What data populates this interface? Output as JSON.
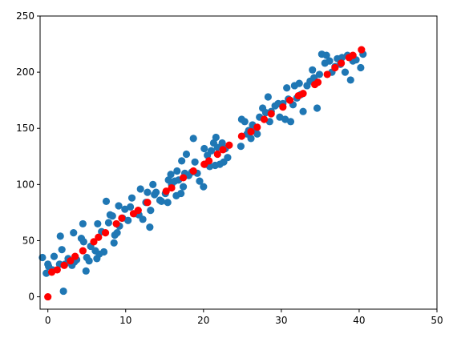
{
  "chart_data": {
    "type": "scatter",
    "xlim": [
      -1,
      50
    ],
    "ylim": [
      -11,
      250
    ],
    "x_ticks": [
      0,
      10,
      20,
      30,
      40,
      50
    ],
    "y_ticks": [
      0,
      50,
      100,
      150,
      200,
      250
    ],
    "x_tick_labels": [
      "0",
      "10",
      "20",
      "30",
      "40",
      "50"
    ],
    "y_tick_labels": [
      "0",
      "50",
      "100",
      "150",
      "200",
      "250"
    ],
    "grid": false,
    "series": [
      {
        "color": "#1f77b4",
        "points": [
          [
            -0.7,
            35
          ],
          [
            0,
            29
          ],
          [
            0.1,
            27
          ],
          [
            -0.2,
            21
          ],
          [
            0.6,
            24
          ],
          [
            0.8,
            36
          ],
          [
            1.5,
            29
          ],
          [
            1.6,
            54
          ],
          [
            1.8,
            42
          ],
          [
            2,
            5
          ],
          [
            2.2,
            29
          ],
          [
            2.6,
            34
          ],
          [
            2.9,
            31
          ],
          [
            3.1,
            28
          ],
          [
            3.3,
            57
          ],
          [
            3.4,
            31
          ],
          [
            3.7,
            33
          ],
          [
            4.3,
            52
          ],
          [
            4.5,
            65
          ],
          [
            4.6,
            49
          ],
          [
            4.9,
            23
          ],
          [
            5,
            35
          ],
          [
            5.3,
            32
          ],
          [
            5.5,
            45
          ],
          [
            6.1,
            41
          ],
          [
            6.3,
            34
          ],
          [
            6.4,
            65
          ],
          [
            6.6,
            38
          ],
          [
            6.9,
            58
          ],
          [
            7.2,
            40
          ],
          [
            7.5,
            85
          ],
          [
            7.8,
            66
          ],
          [
            8,
            73
          ],
          [
            8.3,
            72
          ],
          [
            8.5,
            48
          ],
          [
            8.6,
            55
          ],
          [
            8.9,
            57
          ],
          [
            9.1,
            81
          ],
          [
            9.2,
            63
          ],
          [
            9.6,
            70
          ],
          [
            9.9,
            78
          ],
          [
            10.3,
            68
          ],
          [
            10.6,
            80
          ],
          [
            10.8,
            88
          ],
          [
            11.2,
            74
          ],
          [
            11.7,
            73
          ],
          [
            11.9,
            96
          ],
          [
            12.2,
            69
          ],
          [
            12.6,
            84
          ],
          [
            12.8,
            93
          ],
          [
            13.1,
            62
          ],
          [
            13.2,
            77
          ],
          [
            13.5,
            100
          ],
          [
            13.7,
            91
          ],
          [
            13.9,
            93
          ],
          [
            14.4,
            86
          ],
          [
            14.6,
            85
          ],
          [
            15.1,
            92
          ],
          [
            15.4,
            84
          ],
          [
            15.5,
            104
          ],
          [
            15.8,
            109
          ],
          [
            15.9,
            100
          ],
          [
            16.3,
            103
          ],
          [
            16.5,
            90
          ],
          [
            16.6,
            112
          ],
          [
            16.8,
            104
          ],
          [
            17.1,
            92
          ],
          [
            17.2,
            121
          ],
          [
            17.4,
            98
          ],
          [
            17.6,
            110
          ],
          [
            17.8,
            127
          ],
          [
            18.1,
            108
          ],
          [
            18.5,
            111
          ],
          [
            18.7,
            141
          ],
          [
            18.9,
            120
          ],
          [
            19.2,
            110
          ],
          [
            19.5,
            103
          ],
          [
            20,
            98
          ],
          [
            20.1,
            132
          ],
          [
            20.2,
            118
          ],
          [
            20.5,
            126
          ],
          [
            20.8,
            116
          ],
          [
            21,
            130
          ],
          [
            21.3,
            137
          ],
          [
            21.5,
            117
          ],
          [
            21.6,
            142
          ],
          [
            21.8,
            133
          ],
          [
            22.1,
            118
          ],
          [
            22.4,
            137
          ],
          [
            22.6,
            120
          ],
          [
            22.8,
            132
          ],
          [
            23.1,
            124
          ],
          [
            24.8,
            134
          ],
          [
            24.9,
            158
          ],
          [
            25.3,
            156
          ],
          [
            25.6,
            145
          ],
          [
            25.8,
            148
          ],
          [
            26.1,
            141
          ],
          [
            26.3,
            153
          ],
          [
            26.5,
            149
          ],
          [
            26.9,
            145
          ],
          [
            27.2,
            160
          ],
          [
            27.6,
            168
          ],
          [
            28,
            164
          ],
          [
            28.3,
            178
          ],
          [
            28.5,
            156
          ],
          [
            28.7,
            165
          ],
          [
            29.2,
            170
          ],
          [
            29.6,
            172
          ],
          [
            29.8,
            160
          ],
          [
            30.2,
            172
          ],
          [
            30.5,
            158
          ],
          [
            30.7,
            186
          ],
          [
            30.9,
            176
          ],
          [
            31.2,
            156
          ],
          [
            31.5,
            171
          ],
          [
            31.7,
            188
          ],
          [
            32,
            177
          ],
          [
            32.3,
            190
          ],
          [
            32.5,
            180
          ],
          [
            32.8,
            165
          ],
          [
            33.3,
            188
          ],
          [
            33.7,
            192
          ],
          [
            34,
            202
          ],
          [
            34.2,
            195
          ],
          [
            34.6,
            168
          ],
          [
            34.9,
            198
          ],
          [
            35.2,
            216
          ],
          [
            35.6,
            208
          ],
          [
            35.8,
            215
          ],
          [
            36.2,
            210
          ],
          [
            36.5,
            200
          ],
          [
            36.9,
            205
          ],
          [
            37.2,
            212
          ],
          [
            37.6,
            207
          ],
          [
            37.8,
            213
          ],
          [
            38.2,
            200
          ],
          [
            38.5,
            215
          ],
          [
            38.9,
            193
          ],
          [
            39.2,
            210
          ],
          [
            39.6,
            211
          ],
          [
            40.2,
            204
          ],
          [
            40.5,
            216
          ]
        ]
      },
      {
        "color": "#ff0000",
        "points": [
          [
            0,
            0
          ],
          [
            0.5,
            22
          ],
          [
            1.2,
            24
          ],
          [
            2.1,
            28
          ],
          [
            2.9,
            32
          ],
          [
            3.5,
            36
          ],
          [
            4.5,
            41
          ],
          [
            5.9,
            49
          ],
          [
            6.5,
            53
          ],
          [
            7.4,
            57
          ],
          [
            8.8,
            65
          ],
          [
            9.5,
            70
          ],
          [
            11,
            74
          ],
          [
            11.6,
            77
          ],
          [
            12.8,
            84
          ],
          [
            15.2,
            94
          ],
          [
            15.9,
            97
          ],
          [
            17.4,
            106
          ],
          [
            18.7,
            112
          ],
          [
            20.1,
            118
          ],
          [
            20.7,
            121
          ],
          [
            21.8,
            127
          ],
          [
            22.5,
            131
          ],
          [
            23.3,
            135
          ],
          [
            24.9,
            143
          ],
          [
            26.1,
            147
          ],
          [
            26.9,
            151
          ],
          [
            27.8,
            158
          ],
          [
            28.7,
            163
          ],
          [
            30.2,
            169
          ],
          [
            31.1,
            175
          ],
          [
            32.2,
            179
          ],
          [
            32.8,
            181
          ],
          [
            34.3,
            189
          ],
          [
            34.7,
            191
          ],
          [
            35.9,
            198
          ],
          [
            36.9,
            204
          ],
          [
            37.7,
            208
          ],
          [
            38.7,
            213
          ],
          [
            39.2,
            215
          ],
          [
            40.3,
            220
          ]
        ]
      }
    ]
  }
}
